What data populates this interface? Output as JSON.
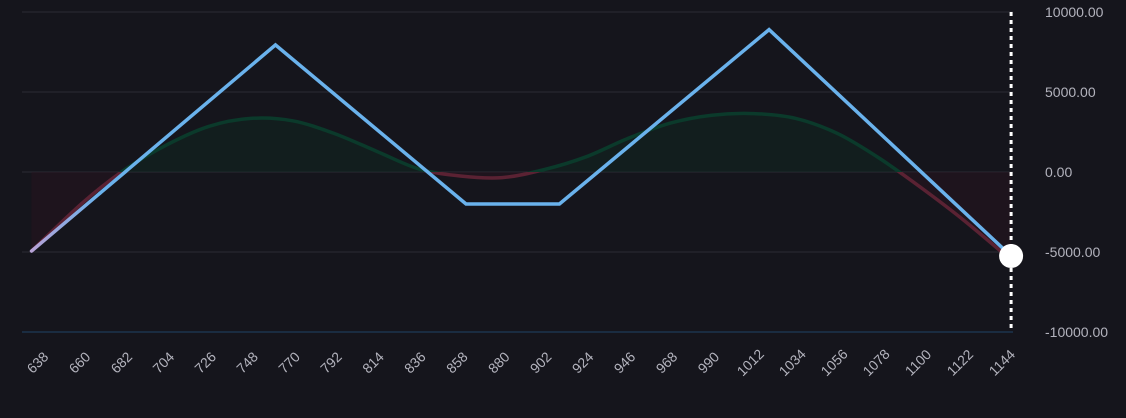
{
  "chart_data": {
    "type": "line",
    "title": "",
    "xlabel": "",
    "ylabel": "",
    "x_ticks": [
      "638",
      "660",
      "682",
      "704",
      "726",
      "748",
      "770",
      "792",
      "814",
      "836",
      "858",
      "880",
      "902",
      "924",
      "946",
      "968",
      "990",
      "1012",
      "1034",
      "1056",
      "1078",
      "1100",
      "1122",
      "1144"
    ],
    "y_ticks": [
      "10000.00",
      "5000.00",
      "0.00",
      "-5000.00",
      "-10000.00"
    ],
    "xlim": [
      628,
      1148
    ],
    "ylim": [
      -10000,
      10000
    ],
    "grid": true,
    "series": [
      {
        "role": "payoff-at-expiration",
        "color": "#6ab2ec",
        "x": [
          633,
          761,
          861,
          910,
          1020,
          1147
        ],
        "y": [
          -4940,
          7940,
          -2000,
          -2000,
          8900,
          -5250
        ]
      },
      {
        "role": "current-pnl",
        "color_positive": "#0b3a2b",
        "color_negative": "#5a2233",
        "x": [
          633,
          660,
          682,
          704,
          726,
          748,
          770,
          792,
          814,
          836,
          858,
          880,
          902,
          924,
          946,
          968,
          990,
          1012,
          1034,
          1056,
          1078,
          1100,
          1122,
          1147
        ],
        "y": [
          -4940,
          -1900,
          150,
          1700,
          2850,
          3350,
          3200,
          2400,
          1300,
          200,
          -250,
          -350,
          150,
          950,
          2100,
          3050,
          3550,
          3650,
          3350,
          2400,
          850,
          -1000,
          -3000,
          -5500
        ]
      }
    ],
    "current_price": {
      "x": 1147,
      "y": -5250,
      "marker_color": "#ffffff"
    }
  }
}
